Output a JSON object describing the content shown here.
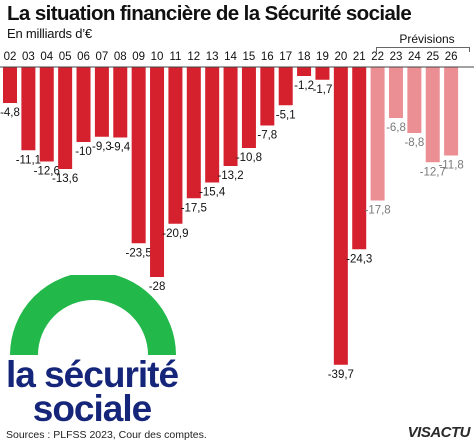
{
  "header": {
    "title": "La situation financière de la Sécurité sociale",
    "subtitle": "En milliards d’€",
    "forecast_label": "Prévisions"
  },
  "logo": {
    "line1": "la sécurité",
    "line2": "sociale",
    "arc_color": "#22b84a",
    "text_color": "#15257a"
  },
  "footer": {
    "source": "Sources : PLFSS 2023, Cour des comptes.",
    "brand": "VISACTU"
  },
  "colors": {
    "actual": "#d5202e",
    "forecast": "#eb8f95",
    "baseline": "#444444"
  },
  "chart_data": {
    "type": "bar",
    "title": "La situation financière de la Sécurité sociale",
    "ylabel": "En milliards d’€",
    "categories": [
      "02",
      "03",
      "04",
      "05",
      "06",
      "07",
      "08",
      "09",
      "10",
      "11",
      "12",
      "13",
      "14",
      "15",
      "16",
      "17",
      "18",
      "19",
      "20",
      "21",
      "22",
      "23",
      "24",
      "25",
      "26"
    ],
    "values": [
      -4.8,
      -11.1,
      -12.6,
      -13.6,
      -10,
      -9.3,
      -9.4,
      -23.5,
      -28,
      -20.9,
      -17.5,
      -15.4,
      -13.2,
      -10.8,
      -7.8,
      -5.1,
      -1.2,
      -1.7,
      -39.7,
      -24.3,
      -17.8,
      -6.8,
      -8.8,
      -12.7,
      -11.8
    ],
    "value_labels": [
      "-4,8",
      "-11,1",
      "-12,6",
      "-13,6",
      "-10",
      "-9,3",
      "-9,4",
      "-23,5",
      "-28",
      "-20,9",
      "-17,5",
      "-15,4",
      "-13,2",
      "-10,8",
      "-7,8",
      "-5,1",
      "-1,2",
      "-1,7",
      "-39,7",
      "-24,3",
      "-17,8",
      "-6,8",
      "-8,8",
      "-12,7",
      "-11,8"
    ],
    "forecast": [
      false,
      false,
      false,
      false,
      false,
      false,
      false,
      false,
      false,
      false,
      false,
      false,
      false,
      false,
      false,
      false,
      false,
      false,
      false,
      false,
      true,
      true,
      true,
      true,
      true
    ],
    "forecast_label": "Prévisions",
    "ylim": [
      -40,
      0
    ],
    "grid": false
  }
}
